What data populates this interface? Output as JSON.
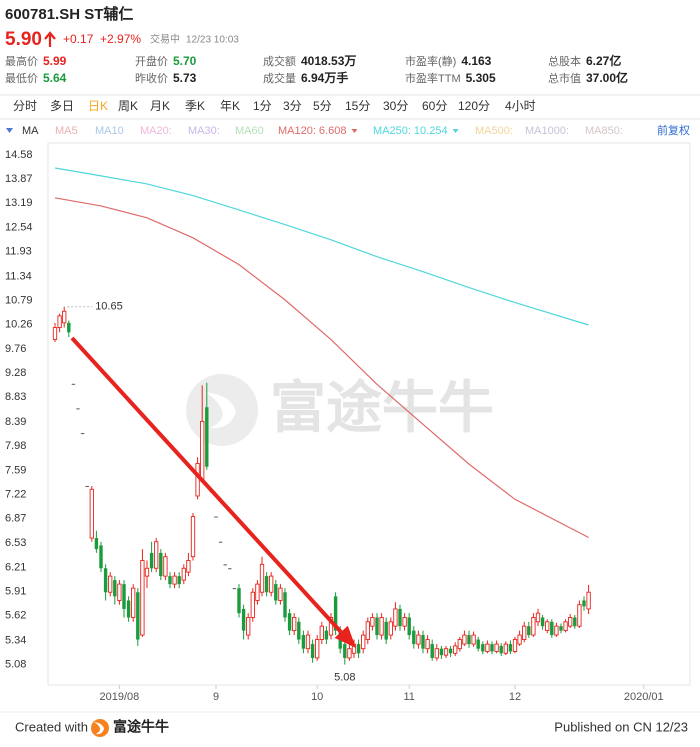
{
  "header": {
    "title": "600781.SH ST辅仁",
    "price": "5.90",
    "change": "+0.17",
    "change_pct": "+2.97%",
    "status": "交易中",
    "time": "12/23 10:03",
    "stats": [
      {
        "label": "最高价",
        "value": "5.99",
        "color": "#e8231d"
      },
      {
        "label": "开盘价",
        "value": "5.70",
        "color": "#1a9b3c"
      },
      {
        "label": "成交额",
        "value": "4018.53万"
      },
      {
        "label": "市盈率(静)",
        "value": "4.163"
      },
      {
        "label": "总股本",
        "value": "6.27亿"
      },
      {
        "label": "最低价",
        "value": "5.64",
        "color": "#1a9b3c"
      },
      {
        "label": "昨收价",
        "value": "5.73"
      },
      {
        "label": "成交量",
        "value": "6.94万手"
      },
      {
        "label": "市盈率TTM",
        "value": "5.305"
      },
      {
        "label": "总市值",
        "value": "37.00亿"
      }
    ]
  },
  "tabs": {
    "items": [
      "分时",
      "多日",
      "日K",
      "周K",
      "月K",
      "季K",
      "年K",
      "1分",
      "3分",
      "5分",
      "15分",
      "30分",
      "60分",
      "120分",
      "4小时"
    ],
    "selected": 2
  },
  "ma_bar": {
    "label": "MA",
    "items": [
      {
        "label": "MA5",
        "color": "#e7b0b0"
      },
      {
        "label": "MA10",
        "color": "#a9c6e8"
      },
      {
        "label": "MA20:",
        "color": "#f0b6d8"
      },
      {
        "label": "MA30:",
        "color": "#c9b6e6"
      },
      {
        "label": "MA60",
        "color": "#b6e0b6"
      },
      {
        "label": "MA500:",
        "color": "#f3d49a"
      },
      {
        "label": "MA1000:",
        "color": "#c8c0d8"
      },
      {
        "label": "MA850:",
        "color": "#d6c6c6"
      }
    ],
    "adjust": "前复权"
  },
  "chart_data": {
    "type": "candlestick",
    "log_scale": true,
    "grid": false,
    "ylim": [
      4.87,
      14.88
    ],
    "yticks": [
      14.58,
      13.87,
      13.19,
      12.54,
      11.93,
      11.34,
      10.79,
      10.26,
      9.76,
      9.28,
      8.83,
      8.39,
      7.98,
      7.59,
      7.22,
      6.87,
      6.53,
      6.21,
      5.91,
      5.62,
      5.34,
      5.08
    ],
    "xlim": [
      -1.5,
      138
    ],
    "xticks": [
      {
        "value": 14,
        "label": "2019/08"
      },
      {
        "value": 35,
        "label": "9"
      },
      {
        "value": 57,
        "label": "10"
      },
      {
        "value": 77,
        "label": "11"
      },
      {
        "value": 100,
        "label": "12"
      },
      {
        "value": 128,
        "label": "2020/01"
      }
    ],
    "up_color": "#e8231d",
    "down_color": "#1a9b3c",
    "flat_color": "#555555",
    "open": [
      9.95,
      10.2,
      10.3,
      10.3,
      9.08,
      8.63,
      8.2,
      7.35,
      6.6,
      6.6,
      6.5,
      6.2,
      5.9,
      6.05,
      5.8,
      6.0,
      5.8,
      5.6,
      5.9,
      5.4,
      6.1,
      6.4,
      6.2,
      6.4,
      6.1,
      6.1,
      6.0,
      6.1,
      6.05,
      6.15,
      6.35,
      7.2,
      7.45,
      8.65,
      7.27,
      6.9,
      6.55,
      6.25,
      6.2,
      5.95,
      5.95,
      5.7,
      5.4,
      5.6,
      5.8,
      5.9,
      6.1,
      5.9,
      6.0,
      5.8,
      5.9,
      5.65,
      5.45,
      5.55,
      5.4,
      5.25,
      5.3,
      5.15,
      5.35,
      5.45,
      5.4,
      5.85,
      5.45,
      5.3,
      5.15,
      5.2,
      5.3,
      5.25,
      5.35,
      5.5,
      5.6,
      5.4,
      5.55,
      5.4,
      5.5,
      5.7,
      5.5,
      5.6,
      5.45,
      5.3,
      5.4,
      5.25,
      5.3,
      5.15,
      5.25,
      5.18,
      5.25,
      5.2,
      5.25,
      5.3,
      5.4,
      5.3,
      5.35,
      5.3,
      5.22,
      5.3,
      5.22,
      5.28,
      5.2,
      5.3,
      5.22,
      5.3,
      5.35,
      5.5,
      5.4,
      5.55,
      5.6,
      5.45,
      5.55,
      5.4,
      5.5,
      5.45,
      5.5,
      5.6,
      5.5,
      5.8,
      5.7
    ],
    "high": [
      10.3,
      10.5,
      10.65,
      10.35,
      9.08,
      8.63,
      8.2,
      7.35,
      7.35,
      6.7,
      6.55,
      6.25,
      6.15,
      6.1,
      6.05,
      6.05,
      5.85,
      6.0,
      5.95,
      6.45,
      6.3,
      6.55,
      6.6,
      6.45,
      6.4,
      6.15,
      6.15,
      6.15,
      6.25,
      6.4,
      6.95,
      7.8,
      9.05,
      9.1,
      7.27,
      6.9,
      6.55,
      6.25,
      6.2,
      5.95,
      6.0,
      5.75,
      5.65,
      5.95,
      6.05,
      6.35,
      6.15,
      6.15,
      6.05,
      6.0,
      5.95,
      5.7,
      5.65,
      5.6,
      5.45,
      5.45,
      5.35,
      5.4,
      5.55,
      5.5,
      5.65,
      5.9,
      5.5,
      5.35,
      5.3,
      5.35,
      5.35,
      5.45,
      5.6,
      5.65,
      5.65,
      5.65,
      5.6,
      5.6,
      5.78,
      5.75,
      5.65,
      5.65,
      5.5,
      5.45,
      5.45,
      5.4,
      5.35,
      5.3,
      5.28,
      5.28,
      5.28,
      5.32,
      5.38,
      5.45,
      5.45,
      5.44,
      5.38,
      5.33,
      5.34,
      5.33,
      5.34,
      5.31,
      5.33,
      5.34,
      5.38,
      5.45,
      5.55,
      5.55,
      5.65,
      5.7,
      5.63,
      5.58,
      5.58,
      5.54,
      5.53,
      5.58,
      5.64,
      5.63,
      5.8,
      5.85,
      5.99
    ],
    "low": [
      9.9,
      10.1,
      10.2,
      10.0,
      9.08,
      8.63,
      8.2,
      7.35,
      6.55,
      6.4,
      6.15,
      5.8,
      5.85,
      5.75,
      5.75,
      5.6,
      5.55,
      5.55,
      5.28,
      5.38,
      5.95,
      6.15,
      6.15,
      6.05,
      6.05,
      5.95,
      5.95,
      5.95,
      6.0,
      6.1,
      6.3,
      7.15,
      7.4,
      7.6,
      7.27,
      6.9,
      6.55,
      6.25,
      6.2,
      5.95,
      5.6,
      5.35,
      5.35,
      5.55,
      5.75,
      5.85,
      5.85,
      5.85,
      5.75,
      5.75,
      5.55,
      5.4,
      5.4,
      5.3,
      5.2,
      5.2,
      5.1,
      5.12,
      5.3,
      5.3,
      5.35,
      5.4,
      5.2,
      5.08,
      5.12,
      5.15,
      5.15,
      5.2,
      5.3,
      5.45,
      5.35,
      5.35,
      5.3,
      5.35,
      5.45,
      5.45,
      5.45,
      5.35,
      5.25,
      5.25,
      5.2,
      5.2,
      5.12,
      5.12,
      5.14,
      5.15,
      5.16,
      5.17,
      5.22,
      5.28,
      5.26,
      5.27,
      5.22,
      5.19,
      5.2,
      5.19,
      5.2,
      5.17,
      5.18,
      5.19,
      5.2,
      5.28,
      5.32,
      5.37,
      5.38,
      5.5,
      5.46,
      5.42,
      5.37,
      5.38,
      5.42,
      5.43,
      5.48,
      5.47,
      5.48,
      5.68,
      5.64
    ],
    "close": [
      10.2,
      10.45,
      10.55,
      10.1,
      9.08,
      8.63,
      8.2,
      7.35,
      7.3,
      6.45,
      6.2,
      5.9,
      6.1,
      5.85,
      6.0,
      5.7,
      5.6,
      5.95,
      5.35,
      6.3,
      6.2,
      6.2,
      6.55,
      6.1,
      6.35,
      6.0,
      6.1,
      6.0,
      6.2,
      6.3,
      6.9,
      7.7,
      8.4,
      7.65,
      7.27,
      6.9,
      6.55,
      6.25,
      6.2,
      5.95,
      5.65,
      5.45,
      5.6,
      5.9,
      6.0,
      6.25,
      5.9,
      6.1,
      5.8,
      5.95,
      5.6,
      5.45,
      5.6,
      5.35,
      5.25,
      5.4,
      5.15,
      5.35,
      5.5,
      5.35,
      5.6,
      5.45,
      5.25,
      5.15,
      5.25,
      5.3,
      5.2,
      5.4,
      5.55,
      5.6,
      5.4,
      5.6,
      5.35,
      5.55,
      5.7,
      5.5,
      5.6,
      5.4,
      5.3,
      5.4,
      5.25,
      5.35,
      5.15,
      5.25,
      5.18,
      5.25,
      5.2,
      5.28,
      5.35,
      5.4,
      5.3,
      5.4,
      5.25,
      5.22,
      5.3,
      5.22,
      5.3,
      5.2,
      5.3,
      5.22,
      5.35,
      5.4,
      5.5,
      5.4,
      5.6,
      5.65,
      5.5,
      5.55,
      5.4,
      5.5,
      5.45,
      5.55,
      5.6,
      5.5,
      5.75,
      5.73,
      5.9
    ],
    "lines": [
      {
        "label": "MA120:",
        "color": "#e06a6a",
        "x": [
          0,
          10,
          20,
          30,
          40,
          50,
          60,
          70,
          80,
          90,
          100,
          116
        ],
        "values": [
          13.34,
          13.12,
          12.8,
          12.28,
          11.62,
          10.8,
          9.95,
          9.07,
          8.35,
          7.69,
          7.15,
          6.608
        ]
      },
      {
        "label": "MA250:",
        "color": "#4fd6dc",
        "x": [
          0,
          10,
          20,
          30,
          40,
          50,
          60,
          70,
          80,
          90,
          100,
          116
        ],
        "values": [
          14.19,
          13.96,
          13.73,
          13.4,
          13.01,
          12.62,
          12.23,
          11.81,
          11.45,
          11.08,
          10.74,
          10.254
        ]
      }
    ],
    "high_label": 10.65,
    "low_label": 5.08
  },
  "watermark": "富途牛牛",
  "footer": {
    "created": "Created with",
    "brand": "富途牛牛",
    "published": "Published on CN 12/23"
  }
}
